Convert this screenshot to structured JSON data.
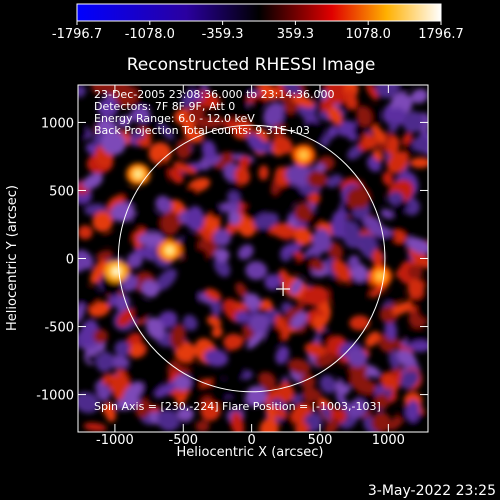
{
  "colorbar": {
    "tick_labels": [
      "-1796.7",
      "-1078.0",
      "-359.3",
      "359.3",
      "1078.0",
      "1796.7"
    ],
    "min": -1796.7,
    "max": 1796.7,
    "colors": [
      "#0000ff",
      "#000080",
      "#000000",
      "#ff0000",
      "#ffff00",
      "#ffffff"
    ]
  },
  "chart_data": {
    "type": "heatmap",
    "title": "Reconstructed RHESSI Image",
    "xlabel": "Heliocentric X (arcsec)",
    "ylabel": "Heliocentric Y (arcsec)",
    "xlim": [
      -1270,
      1290
    ],
    "ylim": [
      -1275,
      1275
    ],
    "x_ticks": [
      -1000,
      -500,
      0,
      500,
      1000
    ],
    "y_ticks": [
      -1000,
      -500,
      0,
      500,
      1000
    ],
    "x_tick_labels": [
      "-1000",
      "-500",
      "0",
      "500",
      "1000"
    ],
    "y_tick_labels": [
      "-1000",
      "-500",
      "0",
      "500",
      "1000"
    ],
    "annotations": [
      "23-Dec-2005 23:08:36.000 to 23:14:36.000",
      "Detectors: 7F 8F 9F, Att 0",
      "Energy Range: 6.0 - 12.0 keV",
      "Back Projection     Total counts: 9.31E+03"
    ],
    "footer_annotation": "Spin Axis = [230,-224]   Flare Position = [-1003,-103]",
    "solar_limb": {
      "center": [
        0,
        0
      ],
      "radius": 975
    },
    "spin_axis_marker": [
      230,
      -224
    ],
    "bright_sources": [
      {
        "x": -990,
        "y": -95,
        "level": "max"
      },
      {
        "x": -600,
        "y": 60,
        "level": "high"
      },
      {
        "x": -830,
        "y": 620,
        "level": "high"
      },
      {
        "x": 380,
        "y": 760,
        "level": "medium"
      },
      {
        "x": 940,
        "y": -130,
        "level": "medium"
      }
    ]
  },
  "footer": {
    "date": "3-May-2022 23:25"
  }
}
